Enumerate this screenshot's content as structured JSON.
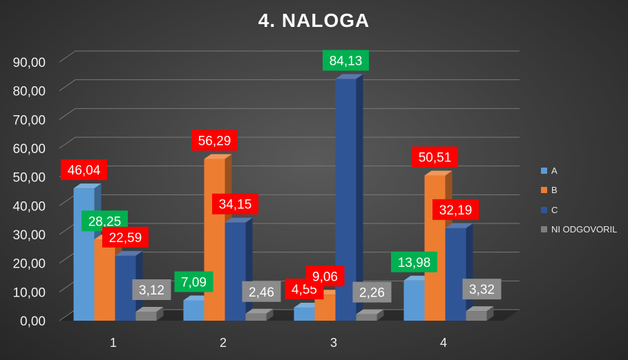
{
  "chart_data": {
    "type": "bar",
    "title": "4. NALOGA",
    "categories": [
      "1",
      "2",
      "3",
      "4"
    ],
    "series": [
      {
        "name": "A",
        "color": "#5b9bd5",
        "values": [
          46.04,
          7.09,
          4.55,
          13.98
        ],
        "label_colors": [
          "#ff0000",
          "#00b050",
          "#ff0000",
          "#00b050"
        ]
      },
      {
        "name": "B",
        "color": "#ed7d31",
        "values": [
          28.25,
          56.29,
          9.06,
          50.51
        ],
        "label_colors": [
          "#00b050",
          "#ff0000",
          "#ff0000",
          "#ff0000"
        ]
      },
      {
        "name": "C",
        "color": "#2f5597",
        "values": [
          22.59,
          34.15,
          84.13,
          32.19
        ],
        "label_colors": [
          "#ff0000",
          "#ff0000",
          "#00b050",
          "#ff0000"
        ]
      },
      {
        "name": "NI ODGOVORIL",
        "color": "#7f7f7f",
        "values": [
          3.12,
          2.46,
          2.26,
          3.32
        ],
        "label_colors": [
          "#8c8c8c",
          "#8c8c8c",
          "#8c8c8c",
          "#8c8c8c"
        ]
      }
    ],
    "value_labels": [
      [
        "46,04",
        "7,09",
        "4,55",
        "13,98"
      ],
      [
        "28,25",
        "56,29",
        "9,06",
        "50,51"
      ],
      [
        "22,59",
        "34,15",
        "84,13",
        "32,19"
      ],
      [
        "3,12",
        "2,46",
        "2,26",
        "3,32"
      ]
    ],
    "y_ticks": [
      "0,00",
      "10,00",
      "20,00",
      "30,00",
      "40,00",
      "50,00",
      "60,00",
      "70,00",
      "80,00",
      "90,00"
    ],
    "ylim": [
      0,
      90
    ],
    "grid": true,
    "legend_position": "right"
  }
}
